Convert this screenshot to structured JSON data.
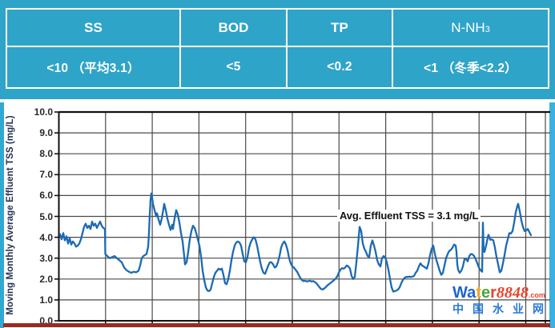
{
  "table": {
    "columns": [
      {
        "label": "SS",
        "value": "<10 （平均3.1）"
      },
      {
        "label": "BOD",
        "value": "<5"
      },
      {
        "label": "TP",
        "value": "<0.2"
      },
      {
        "label": "N-NH",
        "sub": "3",
        "value": "<1 （冬季<2.2）"
      }
    ]
  },
  "chart_data": {
    "type": "line",
    "title": "",
    "xlabel": "",
    "ylabel": "Moving Monthly Average Effluent TSS (mg/L)",
    "ylim": [
      0,
      10
    ],
    "ytick_labels": [
      "10.0",
      "9.0",
      "8.0",
      "7.0",
      "6.0",
      "5.0",
      "4.0",
      "3.0",
      "2.0",
      "1.0",
      "0.0"
    ],
    "grid": true,
    "annotation": "Avg. Effluent TSS = 3.1 mg/L",
    "avg_effluent_tss_mg_per_L": 3.1,
    "line_color": "#1b6ab3",
    "grid_color": "#4a4a4a",
    "frame_color": "#111111",
    "series": [
      {
        "name": "Moving monthly average effluent TSS (mg/L)",
        "points": [
          [
            75,
            4.15
          ],
          [
            77,
            3.9
          ],
          [
            79,
            4.2
          ],
          [
            81,
            3.85
          ],
          [
            83,
            4.05
          ],
          [
            85,
            3.7
          ],
          [
            87,
            3.95
          ],
          [
            89,
            3.65
          ],
          [
            91,
            3.8
          ],
          [
            93,
            3.7
          ],
          [
            95,
            3.55
          ],
          [
            97,
            3.6
          ],
          [
            99,
            3.7
          ],
          [
            101,
            3.9
          ],
          [
            103,
            4.2
          ],
          [
            105,
            4.5
          ],
          [
            107,
            4.65
          ],
          [
            109,
            4.45
          ],
          [
            111,
            4.55
          ],
          [
            113,
            4.4
          ],
          [
            115,
            4.75
          ],
          [
            117,
            4.55
          ],
          [
            119,
            4.65
          ],
          [
            121,
            4.45
          ],
          [
            123,
            4.6
          ],
          [
            125,
            4.75
          ],
          [
            127,
            4.55
          ],
          [
            129,
            4.45
          ],
          [
            131,
            4.4
          ],
          [
            131.5,
            3.2
          ],
          [
            134,
            3.1
          ],
          [
            137,
            3.0
          ],
          [
            140,
            3.05
          ],
          [
            143,
            3.1
          ],
          [
            146,
            3.0
          ],
          [
            149,
            2.9
          ],
          [
            152,
            2.8
          ],
          [
            155,
            2.55
          ],
          [
            158,
            2.42
          ],
          [
            161,
            2.35
          ],
          [
            164,
            2.3
          ],
          [
            167,
            2.35
          ],
          [
            170,
            2.32
          ],
          [
            173,
            2.4
          ],
          [
            175,
            2.65
          ],
          [
            177,
            3.0
          ],
          [
            179,
            3.1
          ],
          [
            181,
            3.15
          ],
          [
            183,
            3.2
          ],
          [
            185,
            3.55
          ],
          [
            186,
            4.2
          ],
          [
            187,
            5.1
          ],
          [
            188,
            5.8
          ],
          [
            189,
            6.1
          ],
          [
            190,
            5.9
          ],
          [
            191,
            5.6
          ],
          [
            193,
            5.3
          ],
          [
            195,
            5.0
          ],
          [
            196,
            5.15
          ],
          [
            198,
            4.85
          ],
          [
            200,
            4.6
          ],
          [
            202,
            4.9
          ],
          [
            204,
            5.35
          ],
          [
            205,
            5.6
          ],
          [
            207,
            5.3
          ],
          [
            209,
            4.9
          ],
          [
            211,
            4.6
          ],
          [
            213,
            4.35
          ],
          [
            215,
            4.6
          ],
          [
            216,
            4.4
          ],
          [
            218,
            4.9
          ],
          [
            220,
            5.3
          ],
          [
            222,
            5.1
          ],
          [
            224,
            4.7
          ],
          [
            226,
            4.2
          ],
          [
            228,
            3.8
          ],
          [
            230,
            3.1
          ],
          [
            231,
            2.7
          ],
          [
            233,
            2.8
          ],
          [
            235,
            3.3
          ],
          [
            237,
            3.9
          ],
          [
            239,
            4.3
          ],
          [
            241,
            4.55
          ],
          [
            243,
            4.45
          ],
          [
            245,
            4.2
          ],
          [
            247,
            3.9
          ],
          [
            249,
            3.6
          ],
          [
            251,
            3.1
          ],
          [
            253,
            2.4
          ],
          [
            255,
            1.95
          ],
          [
            257,
            1.6
          ],
          [
            259,
            1.45
          ],
          [
            261,
            1.42
          ],
          [
            263,
            1.5
          ],
          [
            265,
            1.8
          ],
          [
            267,
            2.1
          ],
          [
            269,
            2.3
          ],
          [
            271,
            2.4
          ],
          [
            273,
            2.5
          ],
          [
            275,
            2.45
          ],
          [
            277,
            2.5
          ],
          [
            279,
            2.2
          ],
          [
            281,
            1.8
          ],
          [
            283,
            1.75
          ],
          [
            285,
            2.0
          ],
          [
            287,
            2.4
          ],
          [
            289,
            2.9
          ],
          [
            291,
            3.3
          ],
          [
            293,
            3.6
          ],
          [
            295,
            3.75
          ],
          [
            297,
            3.8
          ],
          [
            299,
            3.75
          ],
          [
            301,
            3.6
          ],
          [
            303,
            3.2
          ],
          [
            305,
            2.85
          ],
          [
            307,
            2.8
          ],
          [
            309,
            3.05
          ],
          [
            311,
            3.5
          ],
          [
            313,
            3.75
          ],
          [
            315,
            3.9
          ],
          [
            317,
            4.0
          ],
          [
            319,
            3.9
          ],
          [
            321,
            3.6
          ],
          [
            323,
            3.2
          ],
          [
            325,
            2.8
          ],
          [
            327,
            2.5
          ],
          [
            329,
            2.3
          ],
          [
            331,
            2.25
          ],
          [
            333,
            2.45
          ],
          [
            335,
            2.65
          ],
          [
            337,
            2.8
          ],
          [
            339,
            2.8
          ],
          [
            341,
            2.7
          ],
          [
            343,
            2.55
          ],
          [
            345,
            2.6
          ],
          [
            347,
            2.8
          ],
          [
            349,
            3.1
          ],
          [
            351,
            3.5
          ],
          [
            353,
            3.7
          ],
          [
            355,
            3.8
          ],
          [
            357,
            3.65
          ],
          [
            359,
            3.4
          ],
          [
            361,
            3.0
          ],
          [
            363,
            2.75
          ],
          [
            365,
            2.6
          ],
          [
            367,
            2.55
          ],
          [
            369,
            2.45
          ],
          [
            371,
            2.35
          ],
          [
            373,
            2.2
          ],
          [
            375,
            2.05
          ],
          [
            377,
            1.95
          ],
          [
            379,
            1.9
          ],
          [
            381,
            1.92
          ],
          [
            383,
            1.88
          ],
          [
            385,
            1.9
          ],
          [
            387,
            1.92
          ],
          [
            389,
            1.88
          ],
          [
            391,
            1.9
          ],
          [
            393,
            1.86
          ],
          [
            395,
            1.8
          ],
          [
            397,
            1.7
          ],
          [
            399,
            1.6
          ],
          [
            401,
            1.52
          ],
          [
            403,
            1.5
          ],
          [
            405,
            1.55
          ],
          [
            407,
            1.62
          ],
          [
            409,
            1.7
          ],
          [
            411,
            1.76
          ],
          [
            413,
            1.82
          ],
          [
            415,
            1.88
          ],
          [
            417,
            1.95
          ],
          [
            419,
            2.02
          ],
          [
            421,
            2.12
          ],
          [
            423,
            2.3
          ],
          [
            425,
            2.45
          ],
          [
            427,
            2.52
          ],
          [
            429,
            2.5
          ],
          [
            431,
            2.55
          ],
          [
            433,
            2.65
          ],
          [
            435,
            2.6
          ],
          [
            437,
            2.5
          ],
          [
            439,
            2.15
          ],
          [
            441,
            2.0
          ],
          [
            443,
            2.1
          ],
          [
            445,
            2.8
          ],
          [
            447,
            3.6
          ],
          [
            449,
            4.5
          ],
          [
            451,
            4.3
          ],
          [
            453,
            3.7
          ],
          [
            455,
            3.45
          ],
          [
            457,
            3.3
          ],
          [
            459,
            3.1
          ],
          [
            461,
            3.05
          ],
          [
            463,
            3.6
          ],
          [
            465,
            3.85
          ],
          [
            467,
            3.6
          ],
          [
            469,
            3.3
          ],
          [
            471,
            2.9
          ],
          [
            473,
            2.7
          ],
          [
            475,
            2.6
          ],
          [
            477,
            3.0
          ],
          [
            479,
            3.1
          ],
          [
            481,
            3.05
          ],
          [
            483,
            2.8
          ],
          [
            485,
            2.45
          ],
          [
            487,
            2.0
          ],
          [
            489,
            1.6
          ],
          [
            491,
            1.4
          ],
          [
            493,
            1.42
          ],
          [
            495,
            1.45
          ],
          [
            497,
            1.5
          ],
          [
            499,
            1.6
          ],
          [
            501,
            1.8
          ],
          [
            503,
            1.95
          ],
          [
            505,
            2.05
          ],
          [
            507,
            2.1
          ],
          [
            509,
            2.1
          ],
          [
            511,
            2.12
          ],
          [
            513,
            2.1
          ],
          [
            515,
            2.12
          ],
          [
            517,
            2.15
          ],
          [
            519,
            2.3
          ],
          [
            521,
            2.4
          ],
          [
            523,
            2.6
          ],
          [
            525,
            2.75
          ],
          [
            527,
            2.65
          ],
          [
            529,
            2.6
          ],
          [
            531,
            2.55
          ],
          [
            533,
            2.5
          ],
          [
            535,
            2.75
          ],
          [
            537,
            3.15
          ],
          [
            539,
            3.45
          ],
          [
            541,
            3.6
          ],
          [
            543,
            3.2
          ],
          [
            545,
            2.9
          ],
          [
            547,
            2.65
          ],
          [
            549,
            2.4
          ],
          [
            551,
            2.2
          ],
          [
            553,
            2.3
          ],
          [
            555,
            2.65
          ],
          [
            557,
            3.0
          ],
          [
            559,
            3.2
          ],
          [
            561,
            3.35
          ],
          [
            563,
            3.4
          ],
          [
            565,
            3.5
          ],
          [
            567,
            3.65
          ],
          [
            569,
            3.6
          ],
          [
            570,
            3.3
          ],
          [
            571,
            2.7
          ],
          [
            572,
            2.45
          ],
          [
            574,
            2.3
          ],
          [
            576,
            2.4
          ],
          [
            578,
            2.6
          ],
          [
            580,
            2.95
          ],
          [
            582,
            2.95
          ],
          [
            584,
            2.85
          ],
          [
            586,
            3.1
          ],
          [
            588,
            3.2
          ],
          [
            590,
            3.18
          ],
          [
            592,
            3.1
          ],
          [
            594,
            2.95
          ],
          [
            596,
            2.75
          ],
          [
            598,
            2.55
          ],
          [
            600,
            2.42
          ],
          [
            602,
            2.35
          ],
          [
            603,
            4.7
          ],
          [
            604,
            3.35
          ],
          [
            605,
            3.3
          ],
          [
            607,
            3.6
          ],
          [
            609,
            4.0
          ],
          [
            610,
            4.12
          ],
          [
            612,
            3.88
          ],
          [
            614,
            3.9
          ],
          [
            616,
            3.85
          ],
          [
            618,
            3.5
          ],
          [
            620,
            3.05
          ],
          [
            622,
            2.7
          ],
          [
            624,
            2.32
          ],
          [
            626,
            2.4
          ],
          [
            628,
            2.75
          ],
          [
            630,
            3.15
          ],
          [
            632,
            3.6
          ],
          [
            634,
            3.9
          ],
          [
            636,
            4.2
          ],
          [
            638,
            4.18
          ],
          [
            640,
            4.3
          ],
          [
            642,
            4.7
          ],
          [
            644,
            5.2
          ],
          [
            646,
            5.5
          ],
          [
            647,
            5.6
          ],
          [
            649,
            5.25
          ],
          [
            651,
            4.8
          ],
          [
            653,
            4.5
          ],
          [
            655,
            4.3
          ],
          [
            657,
            4.32
          ],
          [
            659,
            4.4
          ],
          [
            661,
            4.25
          ],
          [
            663,
            4.1
          ]
        ]
      }
    ]
  },
  "watermark": {
    "parts": [
      {
        "text": "Wa",
        "color": "#1e63d0"
      },
      {
        "text": "t",
        "color": "#f6a81f"
      },
      {
        "text": "e",
        "color": "#46a73c"
      },
      {
        "text": "r",
        "color": "#e8432d"
      }
    ],
    "number": "8848",
    "number_color": "#e8432d",
    "dotcom": ".com",
    "cn_text": "中国水业网",
    "cn_color": "#2879d8"
  },
  "colors": {
    "table_bg": "#2ea4c9",
    "edge_cyan": "#2fa9d2",
    "red_rule": "#9b2a20"
  }
}
